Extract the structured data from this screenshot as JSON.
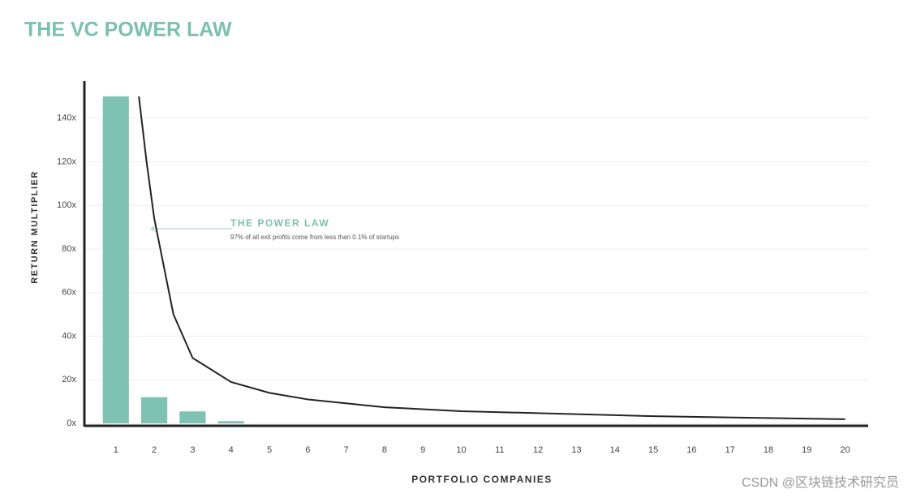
{
  "chart_data": {
    "type": "bar",
    "title": "THE VC POWER LAW",
    "x_label": "PORTFOLIO COMPANIES",
    "y_label": "RETURN MULTIPLIER",
    "annotation": {
      "title": "THE POWER LAW",
      "text": "97% of all exit profits come from less than 0.1% of startups"
    },
    "watermark": "CSDN @区块链技术研究员",
    "x": [
      1,
      2,
      3,
      4,
      5,
      6,
      7,
      8,
      9,
      10,
      11,
      12,
      13,
      14,
      15,
      16,
      17,
      18,
      19,
      20
    ],
    "xlim": [
      0.18,
      20.6
    ],
    "xticks": [
      1,
      2,
      3,
      4,
      5,
      6,
      7,
      8,
      9,
      10,
      11,
      12,
      13,
      14,
      15,
      16,
      17,
      18,
      19,
      20
    ],
    "ylim": [
      0,
      157
    ],
    "yticks": [
      {
        "value": 0,
        "label": "0x"
      },
      {
        "value": 20,
        "label": "20x"
      },
      {
        "value": 40,
        "label": "40x"
      },
      {
        "value": 60,
        "label": "60x"
      },
      {
        "value": 80,
        "label": "80x"
      },
      {
        "value": 100,
        "label": "100x"
      },
      {
        "value": 120,
        "label": "120x"
      },
      {
        "value": 140,
        "label": "140x"
      }
    ],
    "grid": true,
    "series": [
      {
        "type": "bar",
        "color": "#7ec2b3",
        "values": [
          150,
          12,
          5.5,
          1,
          0,
          0,
          0,
          0,
          0,
          0,
          0,
          0,
          0,
          0,
          0,
          0,
          0,
          0,
          0,
          0
        ]
      },
      {
        "type": "line",
        "color": "#222222",
        "x": [
          1.6,
          1.8,
          2,
          2.5,
          3,
          4,
          5,
          6,
          8,
          10,
          15,
          20
        ],
        "values": [
          150,
          120,
          94,
          50,
          30,
          19,
          14,
          11,
          7.4,
          5.6,
          3.3,
          1.9
        ]
      }
    ]
  }
}
